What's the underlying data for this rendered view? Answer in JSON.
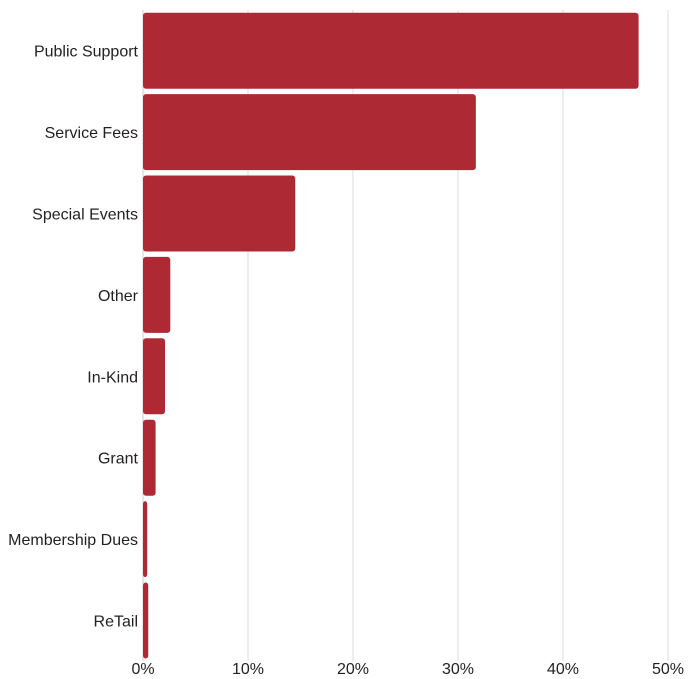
{
  "chart_data": {
    "type": "bar",
    "orientation": "horizontal",
    "categories": [
      "Public Support",
      "Service Fees",
      "Special Events",
      "Other",
      "In-Kind",
      "Grant",
      "Membership Dues",
      "ReTail"
    ],
    "values": [
      47.2,
      31.7,
      14.5,
      2.6,
      2.1,
      1.2,
      0.4,
      0.5
    ],
    "x_ticks": [
      "0%",
      "10%",
      "20%",
      "30%",
      "40%",
      "50%"
    ],
    "xlim": [
      0,
      50
    ],
    "title": "",
    "xlabel": "",
    "ylabel": "",
    "grid": true,
    "legend": "none",
    "bar_color": "#ad2a35"
  }
}
